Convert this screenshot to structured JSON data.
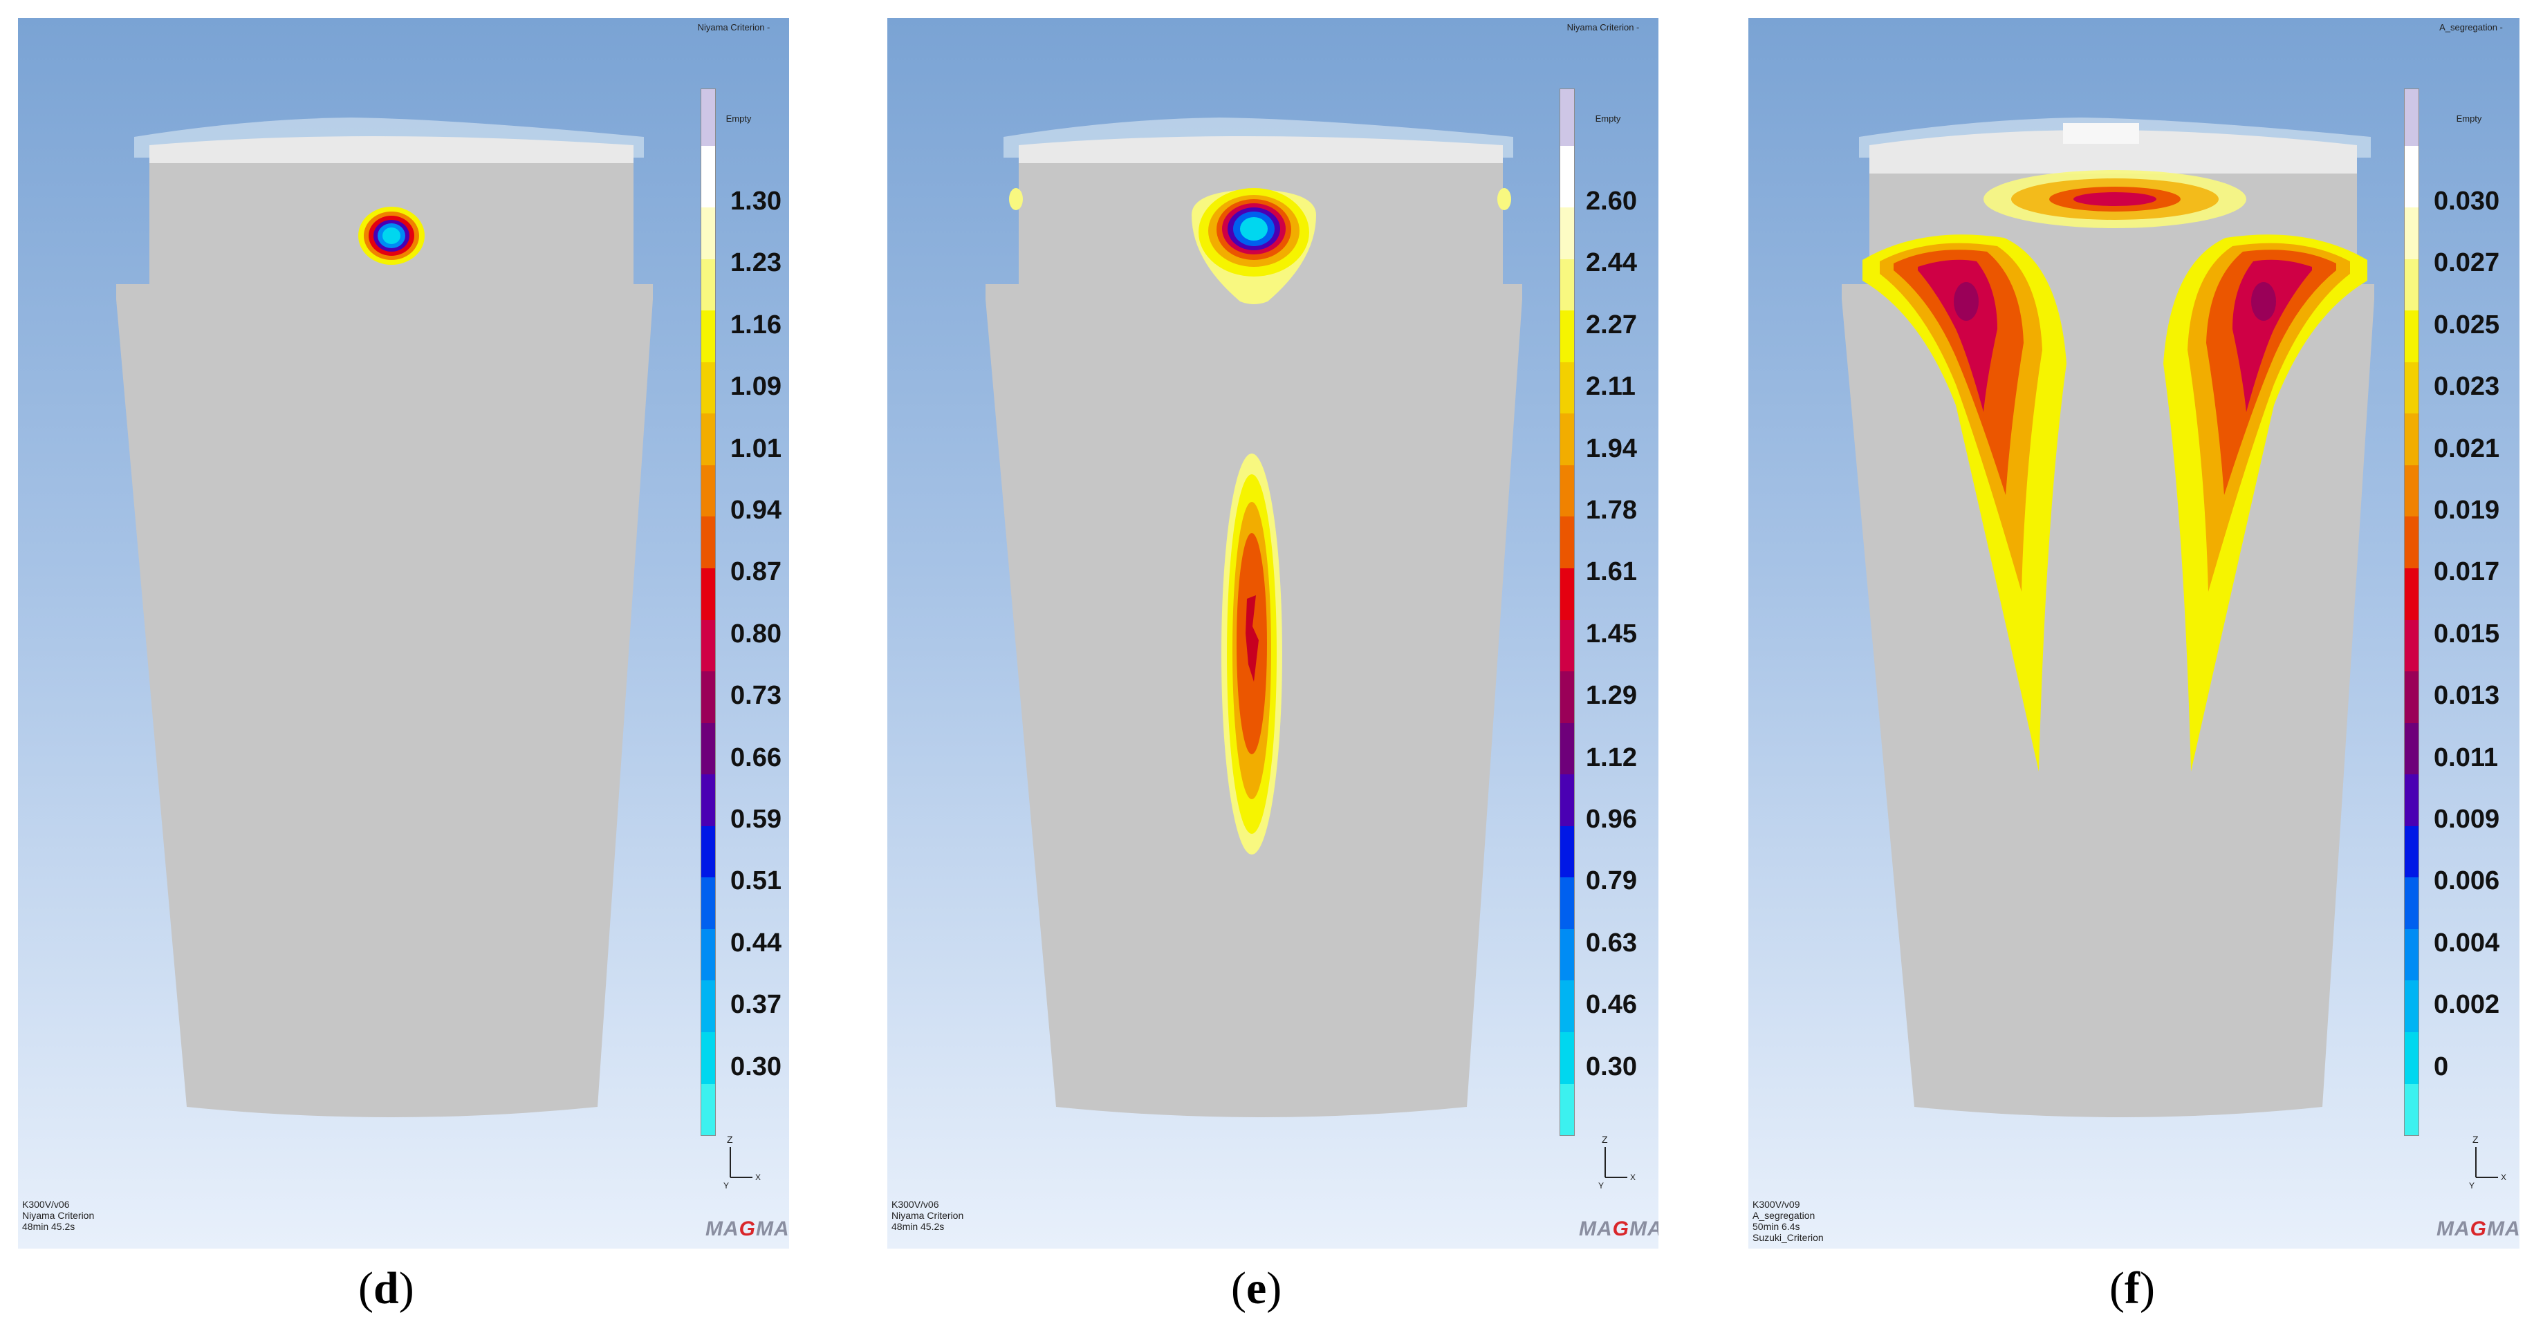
{
  "panels": [
    {
      "legend_title": "Niyama Criterion -",
      "legend_empty": "Empty",
      "ticks": [
        "1.30",
        "1.23",
        "1.16",
        "1.09",
        "1.01",
        "0.94",
        "0.87",
        "0.80",
        "0.73",
        "0.66",
        "0.59",
        "0.51",
        "0.44",
        "0.37",
        "0.30"
      ],
      "info": [
        "K300V/v06",
        "Niyama Criterion",
        "48min 45.2s"
      ],
      "logo": "MAGMA",
      "caption_letter": "d"
    },
    {
      "legend_title": "Niyama Criterion -",
      "legend_empty": "Empty",
      "ticks": [
        "2.60",
        "2.44",
        "2.27",
        "2.11",
        "1.94",
        "1.78",
        "1.61",
        "1.45",
        "1.29",
        "1.12",
        "0.96",
        "0.79",
        "0.63",
        "0.46",
        "0.30"
      ],
      "info": [
        "K300V/v06",
        "Niyama Criterion",
        "48min 45.2s"
      ],
      "logo": "MAGMA",
      "caption_letter": "e"
    },
    {
      "legend_title": "A_segregation -",
      "legend_empty": "Empty",
      "ticks": [
        "0.030",
        "0.027",
        "0.025",
        "0.023",
        "0.021",
        "0.019",
        "0.017",
        "0.015",
        "0.013",
        "0.011",
        "0.009",
        "0.006",
        "0.004",
        "0.002",
        "0"
      ],
      "info": [
        "K300V/v09",
        "A_segregation",
        "50min 6.4s",
        "Suzuki_Criterion"
      ],
      "logo": "MAGMA",
      "caption_letter": "f"
    }
  ],
  "colorbar_colors": [
    "#cec6e6",
    "#ffffff",
    "#fdfcc4",
    "#f8f880",
    "#f6f400",
    "#f3d000",
    "#f2ad00",
    "#f08200",
    "#eb5600",
    "#e40010",
    "#cf0045",
    "#9a0058",
    "#6e007a",
    "#4a00b3",
    "#0018e6",
    "#0060ef",
    "#008cf4",
    "#00b4f3",
    "#00d7ef",
    "#3cf1ef"
  ],
  "axis_labels": {
    "z": "Z",
    "y": "Y",
    "x": "X"
  }
}
